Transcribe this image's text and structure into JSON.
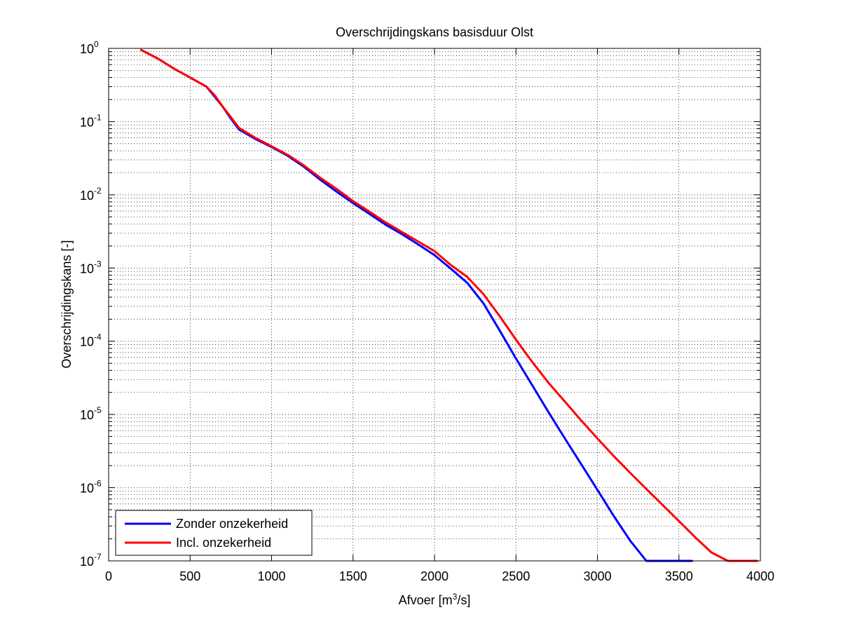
{
  "chart_data": {
    "type": "line",
    "title": "Overschrijdingskans basisduur Olst",
    "xlabel": "Afvoer [m³/s]",
    "xlabel_parts": {
      "before": "Afvoer [m",
      "sup": "3",
      "after": "/s]"
    },
    "ylabel": "Overschrijdingskans [-]",
    "xlim": [
      0,
      4000
    ],
    "ylim": [
      1e-07,
      1
    ],
    "yscale": "log",
    "grid": true,
    "legend_position": "bottom-left",
    "x_ticks": [
      "0",
      "500",
      "1000",
      "1500",
      "2000",
      "2500",
      "3000",
      "3500",
      "4000"
    ],
    "y_ticks": [
      {
        "base": "10",
        "exp": "0"
      },
      {
        "base": "10",
        "exp": "-1"
      },
      {
        "base": "10",
        "exp": "-2"
      },
      {
        "base": "10",
        "exp": "-3"
      },
      {
        "base": "10",
        "exp": "-4"
      },
      {
        "base": "10",
        "exp": "-5"
      },
      {
        "base": "10",
        "exp": "-6"
      },
      {
        "base": "10",
        "exp": "-7"
      }
    ],
    "series": [
      {
        "name": "Zonder onzekerheid",
        "color": "#0000ff",
        "x": [
          200,
          300,
          400,
          500,
          600,
          650,
          700,
          750,
          800,
          900,
          1000,
          1100,
          1200,
          1300,
          1400,
          1500,
          1600,
          1700,
          1800,
          1900,
          2000,
          2100,
          2200,
          2300,
          2400,
          2500,
          2600,
          2700,
          2800,
          2900,
          3000,
          3100,
          3200,
          3300,
          3400,
          3500,
          3580
        ],
        "y": [
          0.95,
          0.73,
          0.53,
          0.4,
          0.3,
          0.22,
          0.16,
          0.11,
          0.078,
          0.058,
          0.045,
          0.034,
          0.024,
          0.016,
          0.011,
          0.0077,
          0.0055,
          0.0039,
          0.0029,
          0.0021,
          0.0015,
          0.00098,
          0.00063,
          0.00033,
          0.00014,
          5.8e-05,
          2.5e-05,
          1.07e-05,
          4.7e-06,
          2.1e-06,
          9.3e-07,
          4.1e-07,
          1.9e-07,
          8.8e-08,
          4.2e-08,
          1.8e-08,
          9e-08
        ]
      },
      {
        "name": "Incl. onzekerheid",
        "color": "#ff0000",
        "x": [
          200,
          300,
          400,
          500,
          600,
          650,
          700,
          750,
          800,
          900,
          1000,
          1100,
          1200,
          1300,
          1400,
          1500,
          1600,
          1700,
          1800,
          1900,
          2000,
          2100,
          2200,
          2300,
          2400,
          2500,
          2600,
          2700,
          2800,
          2900,
          3000,
          3100,
          3200,
          3300,
          3400,
          3500,
          3600,
          3700,
          3800,
          3900,
          3980
        ],
        "y": [
          0.95,
          0.73,
          0.53,
          0.4,
          0.3,
          0.23,
          0.16,
          0.115,
          0.082,
          0.06,
          0.046,
          0.035,
          0.025,
          0.017,
          0.012,
          0.0082,
          0.0059,
          0.0042,
          0.0031,
          0.0023,
          0.0017,
          0.0011,
          0.00076,
          0.00044,
          0.00022,
          0.000105,
          5.2e-05,
          2.7e-05,
          1.5e-05,
          8.3e-06,
          4.7e-06,
          2.7e-06,
          1.6e-06,
          9.6e-07,
          5.8e-07,
          3.5e-07,
          2.1e-07,
          1.3e-07,
          8.1e-08,
          5e-08,
          1e-07
        ]
      }
    ]
  }
}
